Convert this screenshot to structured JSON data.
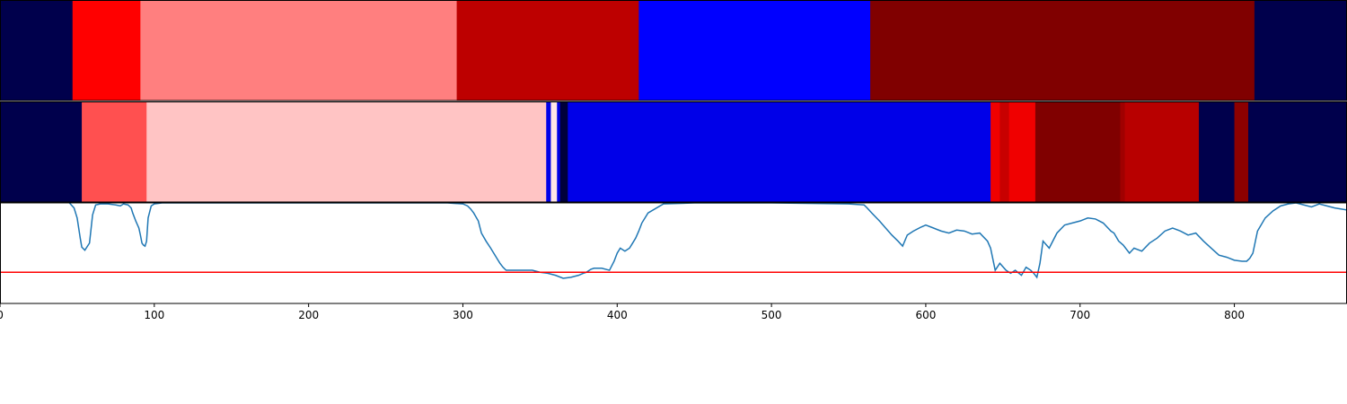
{
  "chart_data": [
    {
      "type": "heatmap",
      "segments": [
        {
          "start": 0,
          "end": 47,
          "color": "#00004c"
        },
        {
          "start": 47,
          "end": 91,
          "color": "#ff0000"
        },
        {
          "start": 91,
          "end": 296,
          "color": "#ff7f7f"
        },
        {
          "start": 296,
          "end": 414,
          "color": "#bd0000"
        },
        {
          "start": 414,
          "end": 564,
          "color": "#0000ff"
        },
        {
          "start": 564,
          "end": 813,
          "color": "#800000"
        },
        {
          "start": 813,
          "end": 873,
          "color": "#00004c"
        }
      ]
    },
    {
      "type": "heatmap",
      "segments": [
        {
          "start": 0,
          "end": 53,
          "color": "#00004c"
        },
        {
          "start": 53,
          "end": 95,
          "color": "#ff5050"
        },
        {
          "start": 95,
          "end": 354,
          "color": "#ffc4c4"
        },
        {
          "start": 354,
          "end": 357,
          "color": "#0000e8"
        },
        {
          "start": 357,
          "end": 361,
          "color": "#ffe6e6"
        },
        {
          "start": 361,
          "end": 363,
          "color": "#0000e8"
        },
        {
          "start": 363,
          "end": 368,
          "color": "#00003a"
        },
        {
          "start": 368,
          "end": 642,
          "color": "#0000e8"
        },
        {
          "start": 642,
          "end": 648,
          "color": "#f00000"
        },
        {
          "start": 648,
          "end": 654,
          "color": "#c80000"
        },
        {
          "start": 654,
          "end": 671,
          "color": "#f00000"
        },
        {
          "start": 671,
          "end": 726,
          "color": "#800000"
        },
        {
          "start": 726,
          "end": 729,
          "color": "#a00000"
        },
        {
          "start": 729,
          "end": 777,
          "color": "#b80000"
        },
        {
          "start": 777,
          "end": 800,
          "color": "#00004c"
        },
        {
          "start": 800,
          "end": 809,
          "color": "#8c0000"
        },
        {
          "start": 809,
          "end": 873,
          "color": "#00004c"
        }
      ]
    },
    {
      "type": "line",
      "xlim": [
        0,
        873
      ],
      "ylim": [
        0,
        1
      ],
      "x_ticks": [
        0,
        100,
        200,
        300,
        400,
        500,
        600,
        700,
        800
      ],
      "x_tick_labels": [
        "0",
        "100",
        "200",
        "300",
        "400",
        "500",
        "600",
        "700",
        "800"
      ],
      "line_color": "#1f77b4",
      "threshold": {
        "value": 0.31,
        "color": "#ff0000"
      },
      "series": [
        {
          "x": [
            0,
            20,
            40,
            45,
            48,
            50,
            52,
            53,
            55,
            58,
            60,
            62,
            65,
            70,
            75,
            78,
            80,
            83,
            85,
            86,
            88,
            90,
            91,
            92,
            93,
            94,
            95,
            96,
            98,
            100,
            105,
            110,
            130,
            150,
            200,
            250,
            290,
            300,
            303,
            305,
            307,
            310,
            312,
            315,
            318,
            320,
            322,
            324,
            326,
            328,
            330,
            335,
            340,
            345,
            350,
            355,
            360,
            365,
            370,
            375,
            378,
            380,
            383,
            385,
            390,
            395,
            398,
            400,
            402,
            405,
            408,
            410,
            412,
            414,
            416,
            420,
            430,
            450,
            500,
            550,
            560,
            562,
            565,
            570,
            574,
            578,
            582,
            585,
            588,
            592,
            597,
            600,
            605,
            610,
            615,
            620,
            625,
            630,
            635,
            640,
            642,
            645,
            648,
            652,
            655,
            658,
            662,
            665,
            668,
            670,
            672,
            674,
            676,
            680,
            685,
            690,
            695,
            700,
            705,
            710,
            715,
            720,
            722,
            725,
            728,
            732,
            735,
            740,
            745,
            750,
            755,
            760,
            765,
            770,
            775,
            780,
            785,
            790,
            795,
            800,
            805,
            808,
            810,
            812,
            815,
            820,
            825,
            830,
            835,
            840,
            845,
            850,
            855,
            860,
            865,
            873
          ],
          "y": [
            1.03,
            1.03,
            1.03,
            1.0,
            0.95,
            0.85,
            0.65,
            0.56,
            0.53,
            0.6,
            0.88,
            0.98,
            0.99,
            0.99,
            0.98,
            0.97,
            0.99,
            0.98,
            0.95,
            0.9,
            0.82,
            0.75,
            0.68,
            0.6,
            0.58,
            0.57,
            0.62,
            0.85,
            0.97,
            0.99,
            1.0,
            1.0,
            1.0,
            1.0,
            1.0,
            1.0,
            1.0,
            0.99,
            0.97,
            0.94,
            0.9,
            0.82,
            0.7,
            0.62,
            0.55,
            0.5,
            0.45,
            0.4,
            0.36,
            0.33,
            0.33,
            0.33,
            0.33,
            0.33,
            0.31,
            0.3,
            0.28,
            0.25,
            0.26,
            0.28,
            0.3,
            0.31,
            0.34,
            0.35,
            0.35,
            0.33,
            0.42,
            0.5,
            0.55,
            0.52,
            0.55,
            0.6,
            0.65,
            0.72,
            0.8,
            0.9,
            0.99,
            1.0,
            1.0,
            0.99,
            0.98,
            0.95,
            0.9,
            0.82,
            0.75,
            0.68,
            0.62,
            0.57,
            0.68,
            0.72,
            0.76,
            0.78,
            0.75,
            0.72,
            0.7,
            0.73,
            0.72,
            0.69,
            0.7,
            0.62,
            0.55,
            0.33,
            0.4,
            0.33,
            0.3,
            0.33,
            0.28,
            0.36,
            0.33,
            0.3,
            0.26,
            0.4,
            0.62,
            0.55,
            0.7,
            0.78,
            0.8,
            0.82,
            0.85,
            0.84,
            0.8,
            0.72,
            0.7,
            0.62,
            0.58,
            0.5,
            0.55,
            0.52,
            0.6,
            0.65,
            0.72,
            0.75,
            0.72,
            0.68,
            0.7,
            0.62,
            0.55,
            0.48,
            0.46,
            0.43,
            0.42,
            0.42,
            0.45,
            0.5,
            0.72,
            0.85,
            0.92,
            0.97,
            0.99,
            1.0,
            0.98,
            0.96,
            0.99,
            0.97,
            0.95,
            0.93
          ]
        }
      ]
    }
  ]
}
